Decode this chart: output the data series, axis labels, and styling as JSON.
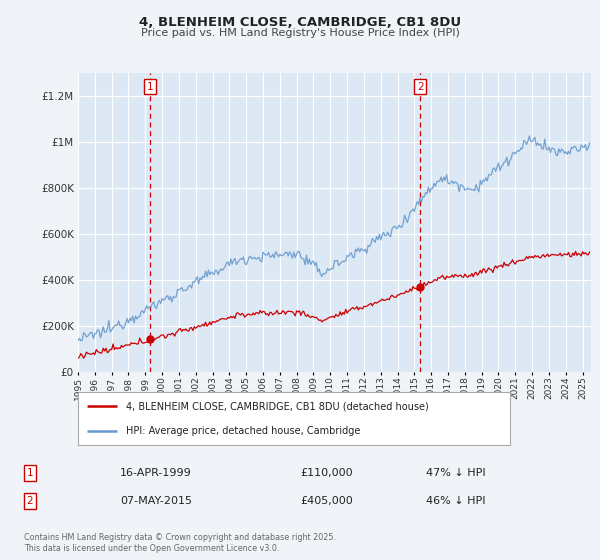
{
  "title": "4, BLENHEIM CLOSE, CAMBRIDGE, CB1 8DU",
  "subtitle": "Price paid vs. HM Land Registry's House Price Index (HPI)",
  "bg_color": "#f0f4f8",
  "plot_bg_color": "#dde8f5",
  "grid_color": "#ffffff",
  "sale1_x": 1999.29,
  "sale1_y": 110000,
  "sale1_label": "1",
  "sale1_date": "16-APR-1999",
  "sale1_price": "£110,000",
  "sale1_hpi": "47% ↓ HPI",
  "sale2_x": 2015.35,
  "sale2_y": 405000,
  "sale2_label": "2",
  "sale2_date": "07-MAY-2015",
  "sale2_price": "£405,000",
  "sale2_hpi": "46% ↓ HPI",
  "legend_line1": "4, BLENHEIM CLOSE, CAMBRIDGE, CB1 8DU (detached house)",
  "legend_line2": "HPI: Average price, detached house, Cambridge",
  "footer": "Contains HM Land Registry data © Crown copyright and database right 2025.\nThis data is licensed under the Open Government Licence v3.0.",
  "line_color_red": "#cc0000",
  "line_color_blue": "#6699cc",
  "yticks": [
    0,
    200000,
    400000,
    600000,
    800000,
    1000000,
    1200000
  ],
  "ylabels": [
    "£0",
    "£200K",
    "£400K",
    "£600K",
    "£800K",
    "£1M",
    "£1.2M"
  ],
  "ylim_max": 1300000,
  "xlim_start": 1995.0,
  "xlim_end": 2025.5
}
